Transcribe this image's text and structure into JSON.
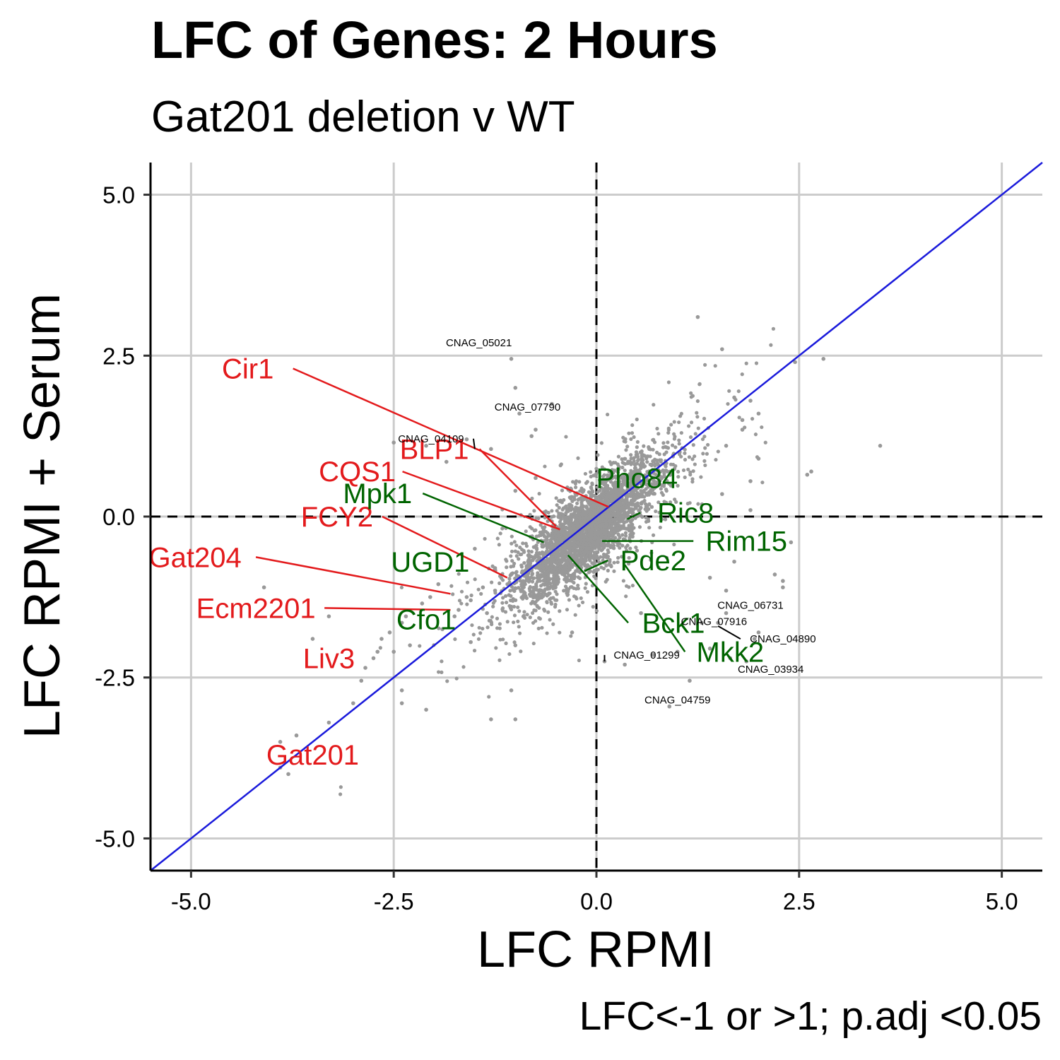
{
  "chart_data": {
    "type": "scatter",
    "title": "LFC of Genes: 2 Hours",
    "subtitle": "Gat201 deletion v WT",
    "caption": "LFC<-1 or >1; p.adj <0.05",
    "xlabel": "LFC RPMI",
    "ylabel": "LFC RPMI + Serum",
    "xlim": [
      -5.5,
      5.5
    ],
    "ylim": [
      -5.5,
      5.5
    ],
    "x_ticks": [
      -5.0,
      -2.5,
      0.0,
      2.5,
      5.0
    ],
    "y_ticks": [
      -5.0,
      -2.5,
      0.0,
      2.5,
      5.0
    ],
    "x_tick_labels": [
      "-5.0",
      "-2.5",
      "0.0",
      "2.5",
      "5.0"
    ],
    "y_tick_labels": [
      "-5.0",
      "-2.5",
      "0.0",
      "2.5",
      "5.0"
    ],
    "grid": true,
    "reference_lines": {
      "x0": "dashed",
      "y0": "dashed",
      "identity": "solid"
    },
    "colors": {
      "points": "#999999",
      "red_labels": "#e31a1c",
      "green_labels": "#006400",
      "identity_line": "#1a1adb",
      "grid": "#cccccc"
    },
    "point_cloud": {
      "center": [
        -0.1,
        -0.2
      ],
      "spread_x": 0.45,
      "spread_y": 0.55,
      "correlation": 0.8,
      "count": 3200
    },
    "sparse_points": [
      [
        1.25,
        3.1
      ],
      [
        2.8,
        2.45
      ],
      [
        2.45,
        2.4
      ],
      [
        3.5,
        1.1
      ],
      [
        2.6,
        0.65
      ],
      [
        2.65,
        0.7
      ],
      [
        1.55,
        2.6
      ],
      [
        1.7,
        1.85
      ],
      [
        1.9,
        1.8
      ],
      [
        2.0,
        1.6
      ],
      [
        1.8,
        1.5
      ],
      [
        1.8,
        1.35
      ],
      [
        1.6,
        1.1
      ],
      [
        2.0,
        0.9
      ],
      [
        1.9,
        0.55
      ],
      [
        1.55,
        0.35
      ],
      [
        1.9,
        0.1
      ],
      [
        2.4,
        -0.4
      ],
      [
        2.2,
        -0.9
      ],
      [
        2.3,
        -1.0
      ],
      [
        2.3,
        -1.1
      ],
      [
        1.7,
        -0.7
      ],
      [
        1.6,
        -1.15
      ],
      [
        1.4,
        -0.95
      ],
      [
        1.6,
        -1.5
      ],
      [
        1.3,
        -1.65
      ],
      [
        2.0,
        -1.8
      ],
      [
        1.5,
        -1.65
      ],
      [
        1.95,
        -1.9
      ],
      [
        1.65,
        -2.2
      ],
      [
        1.85,
        -2.25
      ],
      [
        1.4,
        -2.05
      ],
      [
        1.0,
        -2.1
      ],
      [
        1.15,
        -2.55
      ],
      [
        0.9,
        -2.95
      ],
      [
        0.1,
        -2.25
      ],
      [
        0.35,
        -2.3
      ],
      [
        0.7,
        -2.15
      ],
      [
        -0.3,
        -1.8
      ],
      [
        0.55,
        -1.5
      ],
      [
        -1.05,
        2.45
      ],
      [
        -1.0,
        2.0
      ],
      [
        -0.95,
        1.6
      ],
      [
        -0.55,
        1.75
      ],
      [
        -0.75,
        1.35
      ],
      [
        -0.8,
        1.25
      ],
      [
        -1.6,
        1.2
      ],
      [
        -1.3,
        1.05
      ],
      [
        -2.5,
        1.15
      ],
      [
        -2.1,
        1.1
      ],
      [
        -1.85,
        0.85
      ],
      [
        -0.75,
        0.6
      ],
      [
        -1.0,
        0.4
      ],
      [
        -1.5,
        -0.5
      ],
      [
        -1.25,
        -0.8
      ],
      [
        -1.05,
        -0.9
      ],
      [
        -1.4,
        -1.1
      ],
      [
        -1.6,
        -1.25
      ],
      [
        -1.95,
        -1.05
      ],
      [
        -2.05,
        -1.25
      ],
      [
        -2.15,
        -1.35
      ],
      [
        -2.35,
        -1.55
      ],
      [
        -2.4,
        -1.65
      ],
      [
        -2.55,
        -1.8
      ],
      [
        -2.65,
        -1.9
      ],
      [
        -2.7,
        -2.1
      ],
      [
        -2.75,
        -2.2
      ],
      [
        -2.85,
        -2.35
      ],
      [
        -2.5,
        -2.1
      ],
      [
        -2.3,
        -2.0
      ],
      [
        -1.9,
        -1.75
      ],
      [
        -1.75,
        -1.55
      ],
      [
        -1.7,
        -1.45
      ],
      [
        -1.55,
        -1.3
      ],
      [
        -1.35,
        -1.5
      ],
      [
        -1.05,
        -1.4
      ],
      [
        -1.25,
        -1.15
      ],
      [
        -1.55,
        -1.95
      ],
      [
        -1.0,
        -2.0
      ],
      [
        -1.05,
        -2.7
      ],
      [
        -1.3,
        -3.15
      ],
      [
        -1.0,
        -3.15
      ],
      [
        -2.1,
        -3.0
      ],
      [
        -2.4,
        -2.9
      ],
      [
        -2.9,
        -2.55
      ],
      [
        -3.0,
        -2.9
      ],
      [
        -3.3,
        -3.2
      ],
      [
        -3.7,
        -3.4
      ],
      [
        -3.9,
        -3.5
      ],
      [
        -3.8,
        -4.0
      ],
      [
        -3.9,
        -3.9
      ],
      [
        -4.1,
        -1.1
      ],
      [
        -3.5,
        -1.9
      ],
      [
        -3.3,
        -1.55
      ],
      [
        -2.4,
        -2.7
      ]
    ],
    "labeled_genes": [
      {
        "label": "Cir1",
        "color": "red",
        "point": [
          0.15,
          0.15
        ],
        "label_pos": [
          -4.3,
          2.3
        ]
      },
      {
        "label": "BLP1",
        "color": "red",
        "point": [
          -0.5,
          -0.15
        ],
        "label_pos": [
          -2.0,
          1.05
        ]
      },
      {
        "label": "CQS1",
        "color": "red",
        "point": [
          -0.45,
          -0.2
        ],
        "label_pos": [
          -2.95,
          0.7
        ]
      },
      {
        "label": "FCY2",
        "color": "red",
        "point": [
          -1.1,
          -0.95
        ],
        "label_pos": [
          -3.2,
          0.0
        ]
      },
      {
        "label": "Gat204",
        "color": "red",
        "point": [
          -1.8,
          -1.2
        ],
        "label_pos": [
          -4.95,
          -0.63
        ]
      },
      {
        "label": "Ecm2201",
        "color": "red",
        "point": [
          -1.8,
          -1.45
        ],
        "label_pos": [
          -4.2,
          -1.42
        ]
      },
      {
        "label": "Liv3",
        "color": "red",
        "point": [
          -3.0,
          -2.45
        ],
        "label_pos": [
          -3.3,
          -2.2
        ]
      },
      {
        "label": "Gat201",
        "color": "red",
        "point": [
          -3.6,
          -3.65
        ],
        "label_pos": [
          -3.5,
          -3.7
        ]
      },
      {
        "label": "Mpk1",
        "color": "green",
        "point": [
          -0.65,
          -0.4
        ],
        "label_pos": [
          -2.7,
          0.36
        ]
      },
      {
        "label": "UGD1",
        "color": "green",
        "point": [
          -1.5,
          -0.7
        ],
        "label_pos": [
          -2.05,
          -0.7
        ]
      },
      {
        "label": "Cfo1",
        "color": "green",
        "point": [
          -1.9,
          -1.55
        ],
        "label_pos": [
          -2.1,
          -1.6
        ]
      },
      {
        "label": "Pho84",
        "color": "green",
        "point": [
          0.5,
          0.5
        ],
        "label_pos": [
          0.5,
          0.6
        ]
      },
      {
        "label": "Ric8",
        "color": "green",
        "point": [
          0.38,
          -0.04
        ],
        "label_pos": [
          1.1,
          0.06
        ]
      },
      {
        "label": "Rim15",
        "color": "green",
        "point": [
          0.07,
          -0.38
        ],
        "label_pos": [
          1.85,
          -0.38
        ]
      },
      {
        "label": "Pde2",
        "color": "green",
        "point": [
          -0.15,
          -0.85
        ],
        "label_pos": [
          0.7,
          -0.68
        ]
      },
      {
        "label": "Bck1",
        "color": "green",
        "point": [
          -0.35,
          -0.6
        ],
        "label_pos": [
          0.95,
          -1.65
        ]
      },
      {
        "label": "Mkk2",
        "color": "green",
        "point": [
          0.35,
          -0.75
        ],
        "label_pos": [
          1.65,
          -2.1
        ]
      },
      {
        "label": "CNAG_05021",
        "color": "black",
        "point": [
          -1.05,
          2.45
        ],
        "label_pos": [
          -1.45,
          2.7
        ]
      },
      {
        "label": "CNAG_07790",
        "color": "black",
        "point": [
          -0.95,
          1.6
        ],
        "label_pos": [
          -0.85,
          1.7
        ]
      },
      {
        "label": "CNAG_04109",
        "color": "black",
        "point": [
          -1.5,
          1.05
        ],
        "label_pos": [
          -2.04,
          1.21
        ]
      },
      {
        "label": "CNAG_06731",
        "color": "black",
        "point": [
          1.45,
          -1.5
        ],
        "label_pos": [
          1.9,
          -1.38
        ]
      },
      {
        "label": "CNAG_07916",
        "color": "black",
        "point": [
          1.2,
          -1.65
        ],
        "label_pos": [
          1.45,
          -1.63
        ]
      },
      {
        "label": "CNAG_04890",
        "color": "black",
        "point": [
          1.5,
          -1.7
        ],
        "label_pos": [
          2.3,
          -1.9
        ]
      },
      {
        "label": "CNAG_01299",
        "color": "black",
        "point": [
          0.1,
          -2.25
        ],
        "label_pos": [
          0.62,
          -2.15
        ]
      },
      {
        "label": "CNAG_03934",
        "color": "black",
        "point": [
          1.85,
          -2.25
        ],
        "label_pos": [
          2.15,
          -2.37
        ]
      },
      {
        "label": "CNAG_04759",
        "color": "black",
        "point": [
          0.9,
          -2.95
        ],
        "label_pos": [
          1.0,
          -2.85
        ]
      }
    ]
  }
}
